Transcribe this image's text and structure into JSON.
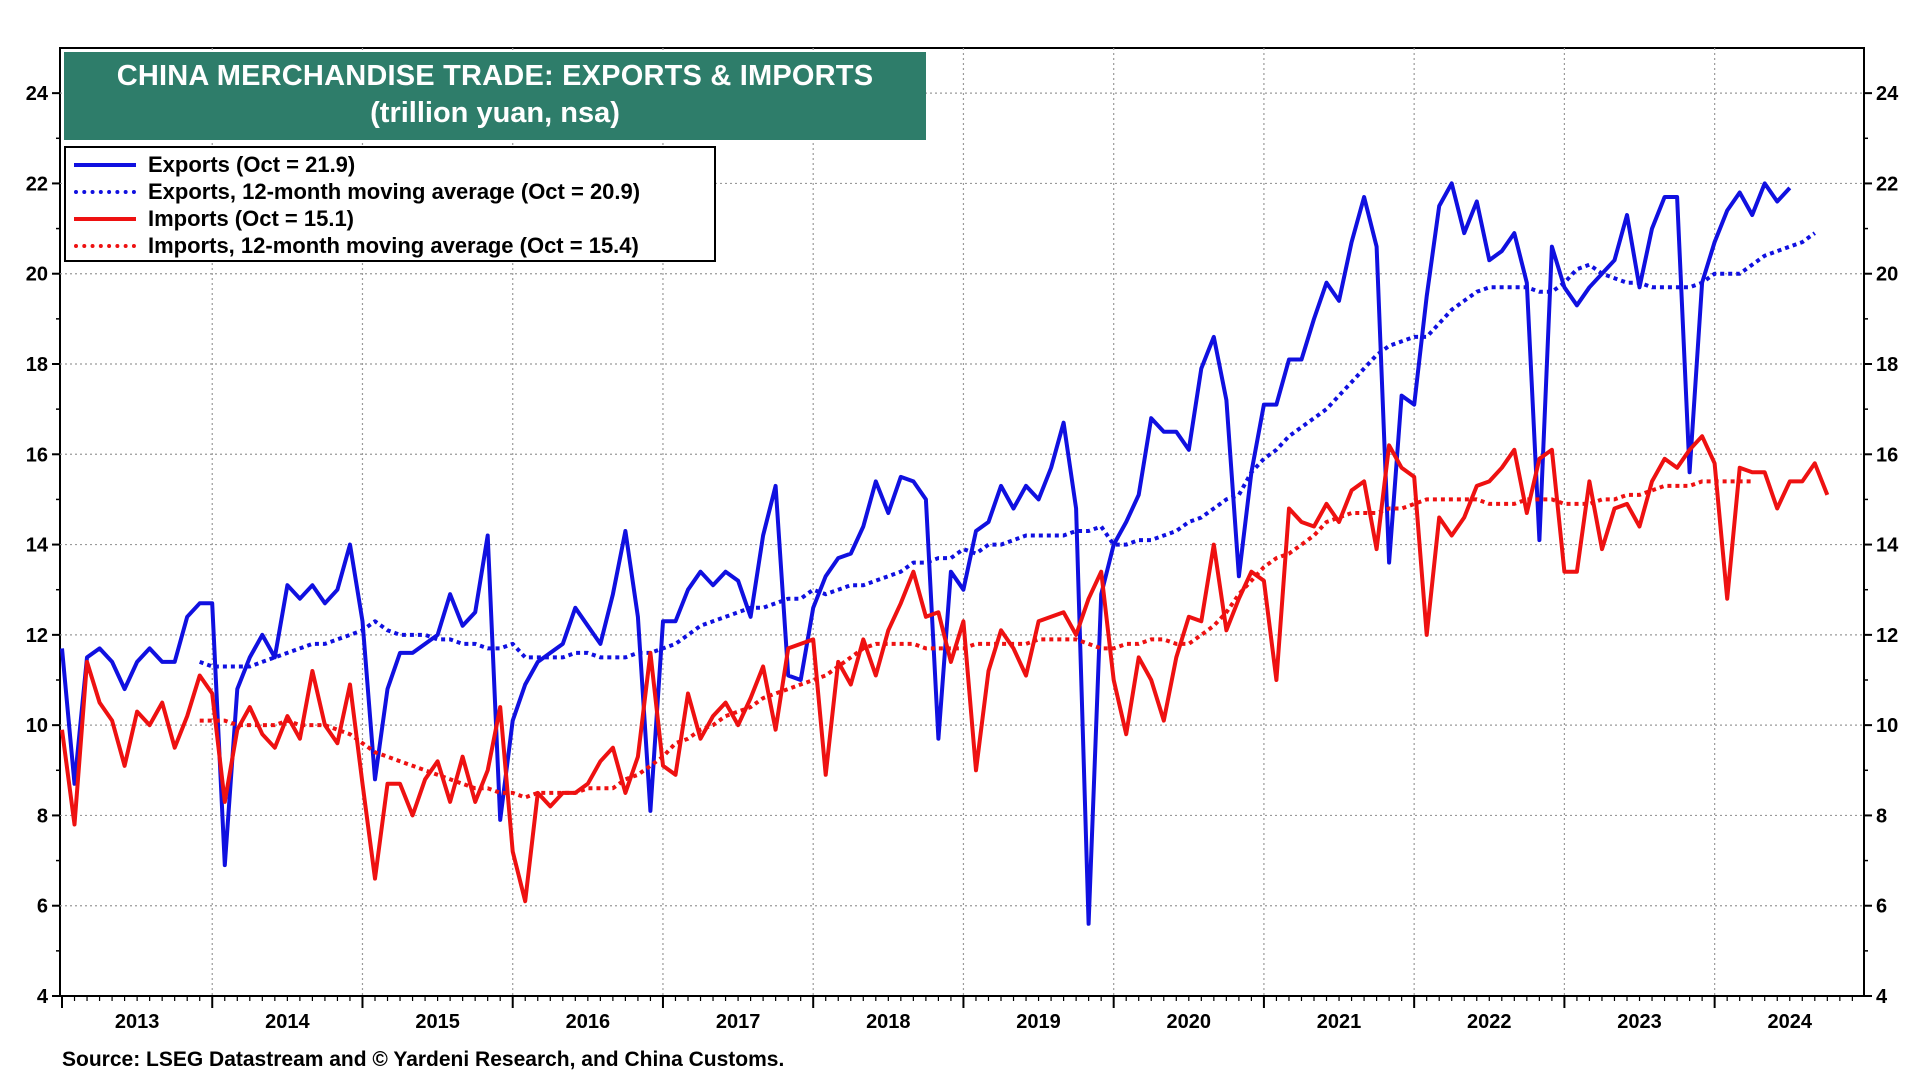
{
  "title": "CHINA MERCHANDISE TRADE: EXPORTS & IMPORTS",
  "subtitle": "(trillion yuan, nsa)",
  "source": "Source: LSEG Datastream and © Yardeni Research, and China Customs.",
  "legend": [
    {
      "label": "Exports  (Oct = 21.9)",
      "color": "#1010e0",
      "style": "solid"
    },
    {
      "label": "Exports, 12-month moving average (Oct = 20.9)",
      "color": "#1010e0",
      "style": "dotted"
    },
    {
      "label": "Imports (Oct = 15.1)",
      "color": "#ee1111",
      "style": "solid"
    },
    {
      "label": "Imports, 12-month moving average (Oct = 15.4)",
      "color": "#ee1111",
      "style": "dotted"
    }
  ],
  "chart_data": {
    "type": "line",
    "title": "CHINA MERCHANDISE TRADE: EXPORTS & IMPORTS",
    "ylabel": "trillion yuan, nsa",
    "ylim": [
      4,
      25
    ],
    "yticks": [
      4,
      6,
      8,
      10,
      12,
      14,
      16,
      18,
      20,
      22,
      24
    ],
    "x_start": "2013-01",
    "x_end": "2024-12",
    "year_labels": [
      "2013",
      "2014",
      "2015",
      "2016",
      "2017",
      "2018",
      "2019",
      "2020",
      "2021",
      "2022",
      "2023",
      "2024"
    ],
    "series": [
      {
        "name": "Exports",
        "color": "#1010e0",
        "style": "solid",
        "start": "2013-01",
        "values": [
          11.7,
          8.7,
          11.5,
          11.7,
          11.4,
          10.8,
          11.4,
          11.7,
          11.4,
          11.4,
          12.4,
          12.7,
          12.7,
          6.9,
          10.8,
          11.5,
          12.0,
          11.5,
          13.1,
          12.8,
          13.1,
          12.7,
          13.0,
          14.0,
          12.3,
          8.8,
          10.8,
          11.6,
          11.6,
          11.8,
          12.0,
          12.9,
          12.2,
          12.5,
          14.2,
          7.9,
          10.1,
          10.9,
          11.4,
          11.6,
          11.8,
          12.6,
          12.2,
          11.8,
          12.9,
          14.3,
          12.4,
          8.1,
          12.3,
          12.3,
          13.0,
          13.4,
          13.1,
          13.4,
          13.2,
          12.4,
          14.2,
          15.3,
          11.1,
          11.0,
          12.6,
          13.3,
          13.7,
          13.8,
          14.4,
          15.4,
          14.7,
          15.5,
          15.4,
          15.0,
          9.7,
          13.4,
          13.0,
          14.3,
          14.5,
          15.3,
          14.8,
          15.3,
          15.0,
          15.7,
          16.7,
          14.8,
          5.6,
          12.9,
          14.0,
          14.5,
          15.1,
          16.8,
          16.5,
          16.5,
          16.1,
          17.9,
          18.6,
          17.2,
          13.3,
          15.6,
          17.1,
          17.1,
          18.1,
          18.1,
          19.0,
          19.8,
          19.4,
          20.7,
          21.7,
          20.6,
          13.6,
          17.3,
          17.1,
          19.5,
          21.5,
          22.0,
          20.9,
          21.6,
          20.3,
          20.5,
          20.9,
          19.8,
          14.1,
          20.6,
          19.7,
          19.3,
          19.7,
          20.0,
          20.3,
          21.3,
          19.7,
          21.0,
          21.7,
          21.7,
          15.6,
          19.8,
          20.7,
          21.4,
          21.8,
          21.3,
          22.0,
          21.6,
          21.9
        ]
      },
      {
        "name": "Exports, 12-month moving average",
        "color": "#1010e0",
        "style": "dotted",
        "start": "2013-12",
        "values": [
          11.4,
          11.3,
          11.3,
          11.3,
          11.3,
          11.4,
          11.5,
          11.6,
          11.7,
          11.8,
          11.8,
          11.9,
          12.0,
          12.1,
          12.3,
          12.1,
          12.0,
          12.0,
          12.0,
          11.9,
          11.9,
          11.8,
          11.8,
          11.7,
          11.7,
          11.8,
          11.5,
          11.5,
          11.5,
          11.5,
          11.6,
          11.6,
          11.5,
          11.5,
          11.5,
          11.6,
          11.6,
          11.7,
          11.8,
          12.0,
          12.2,
          12.3,
          12.4,
          12.5,
          12.6,
          12.6,
          12.7,
          12.8,
          12.8,
          13.0,
          12.9,
          13.0,
          13.1,
          13.1,
          13.2,
          13.3,
          13.4,
          13.6,
          13.6,
          13.7,
          13.7,
          13.9,
          13.8,
          14.0,
          14.0,
          14.1,
          14.2,
          14.2,
          14.2,
          14.2,
          14.3,
          14.3,
          14.4,
          14.0,
          14.0,
          14.1,
          14.1,
          14.2,
          14.3,
          14.5,
          14.6,
          14.8,
          15.0,
          15.1,
          15.6,
          15.9,
          16.1,
          16.4,
          16.6,
          16.8,
          17.0,
          17.3,
          17.6,
          17.9,
          18.2,
          18.4,
          18.5,
          18.6,
          18.6,
          18.9,
          19.2,
          19.4,
          19.6,
          19.7,
          19.7,
          19.7,
          19.7,
          19.6,
          19.6,
          19.8,
          20.1,
          20.2,
          20.0,
          19.9,
          19.8,
          19.8,
          19.7,
          19.7,
          19.7,
          19.7,
          19.8,
          20.0,
          20.0,
          20.0,
          20.2,
          20.4,
          20.5,
          20.6,
          20.7,
          20.9
        ]
      },
      {
        "name": "Imports",
        "color": "#ee1111",
        "style": "solid",
        "start": "2013-01",
        "values": [
          9.9,
          7.8,
          11.4,
          10.5,
          10.1,
          9.1,
          10.3,
          10.0,
          10.5,
          9.5,
          10.2,
          11.1,
          10.7,
          8.3,
          9.9,
          10.4,
          9.8,
          9.5,
          10.2,
          9.7,
          11.2,
          10.0,
          9.6,
          10.9,
          8.7,
          6.6,
          8.7,
          8.7,
          8.0,
          8.8,
          9.2,
          8.3,
          9.3,
          8.3,
          9.0,
          10.4,
          7.2,
          6.1,
          8.5,
          8.2,
          8.5,
          8.5,
          8.7,
          9.2,
          9.5,
          8.5,
          9.3,
          11.6,
          9.1,
          8.9,
          10.7,
          9.7,
          10.2,
          10.5,
          10.0,
          10.6,
          11.3,
          9.9,
          11.7,
          11.8,
          11.9,
          8.9,
          11.4,
          10.9,
          11.9,
          11.1,
          12.1,
          12.7,
          13.4,
          12.4,
          12.5,
          11.4,
          12.3,
          9.0,
          11.2,
          12.1,
          11.7,
          11.1,
          12.3,
          12.4,
          12.5,
          12.0,
          12.8,
          13.4,
          11.0,
          9.8,
          11.5,
          11.0,
          10.1,
          11.5,
          12.4,
          12.3,
          14.0,
          12.1,
          12.8,
          13.4,
          13.2,
          11.0,
          14.8,
          14.5,
          14.4,
          14.9,
          14.5,
          15.2,
          15.4,
          13.9,
          16.2,
          15.7,
          15.5,
          12.0,
          14.6,
          14.2,
          14.6,
          15.3,
          15.4,
          15.7,
          16.1,
          14.7,
          15.9,
          16.1,
          13.4,
          13.4,
          15.4,
          13.9,
          14.8,
          14.9,
          14.4,
          15.4,
          15.9,
          15.7,
          16.1,
          16.4,
          15.8,
          12.8,
          15.7,
          15.6,
          15.6,
          14.8,
          15.4,
          15.4,
          15.8,
          15.1
        ]
      },
      {
        "name": "Imports, 12-month moving average",
        "color": "#ee1111",
        "style": "dotted",
        "start": "2013-12",
        "values": [
          10.1,
          10.1,
          10.1,
          10.0,
          10.0,
          10.0,
          10.0,
          10.1,
          10.0,
          10.0,
          10.0,
          9.9,
          9.8,
          9.6,
          9.4,
          9.3,
          9.2,
          9.1,
          9.0,
          8.9,
          8.8,
          8.7,
          8.6,
          8.6,
          8.5,
          8.5,
          8.4,
          8.5,
          8.5,
          8.5,
          8.5,
          8.6,
          8.6,
          8.6,
          8.8,
          8.9,
          9.1,
          9.3,
          9.6,
          9.7,
          9.9,
          10.0,
          10.2,
          10.3,
          10.4,
          10.6,
          10.7,
          10.8,
          10.9,
          11.0,
          11.1,
          11.3,
          11.5,
          11.7,
          11.8,
          11.8,
          11.8,
          11.8,
          11.7,
          11.7,
          11.7,
          11.7,
          11.8,
          11.8,
          11.8,
          11.8,
          11.8,
          11.9,
          11.9,
          11.9,
          11.9,
          11.8,
          11.7,
          11.7,
          11.8,
          11.8,
          11.9,
          11.9,
          11.8,
          11.8,
          12.0,
          12.2,
          12.5,
          12.9,
          13.2,
          13.5,
          13.7,
          13.8,
          14.0,
          14.2,
          14.5,
          14.6,
          14.7,
          14.7,
          14.7,
          14.8,
          14.8,
          14.9,
          15.0,
          15.0,
          15.0,
          15.0,
          15.0,
          14.9,
          14.9,
          14.9,
          15.0,
          15.0,
          15.0,
          14.9,
          14.9,
          14.9,
          15.0,
          15.0,
          15.1,
          15.1,
          15.2,
          15.3,
          15.3,
          15.3,
          15.4,
          15.4,
          15.4,
          15.4,
          15.4
        ]
      }
    ]
  }
}
